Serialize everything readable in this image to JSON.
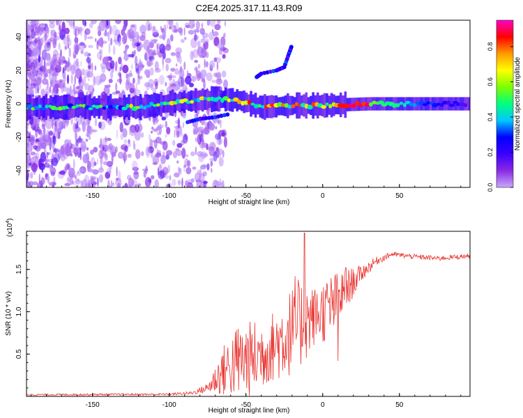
{
  "title": "C2E4.2025.317.11.43.R09",
  "colors": {
    "snr_line": "#e8322e",
    "frame": "#000000",
    "background": "#ffffff"
  },
  "colormap_stops": [
    "#c9a8ff",
    "#8a2be2",
    "#3a00ff",
    "#0000ff",
    "#00c8ff",
    "#00ff80",
    "#7cff00",
    "#ffff00",
    "#ff9a00",
    "#ff0000",
    "#ff00c8"
  ],
  "chart_data": [
    {
      "type": "heatmap",
      "xlabel": "Height of straight line (km)",
      "ylabel": "Frequency (Hz)",
      "xlim": [
        -193,
        96
      ],
      "ylim": [
        -50,
        50
      ],
      "xticks": [
        -150,
        -100,
        -50,
        0,
        50
      ],
      "yticks": [
        -40,
        -20,
        0,
        20,
        40
      ],
      "colorbar": {
        "label": "Normalized spectral amplitude",
        "range": [
          0,
          0.95
        ],
        "ticks": [
          "0.0",
          "0.2",
          "0.4",
          "0.6",
          "0.8"
        ],
        "tick_values": [
          0.0,
          0.2,
          0.4,
          0.6,
          0.8
        ]
      },
      "features": [
        {
          "name": "main_band",
          "x_start": -193,
          "x_end": 96,
          "center_hz": [
            [
              -193,
              -2
            ],
            [
              -120,
              -2
            ],
            [
              -95,
              1
            ],
            [
              -70,
              3
            ],
            [
              -55,
              2
            ],
            [
              -40,
              -2
            ],
            [
              -20,
              -1
            ],
            [
              0,
              -1
            ],
            [
              30,
              0
            ],
            [
              96,
              0
            ]
          ]
        },
        {
          "name": "upper_branch",
          "points": [
            [
              -43,
              16
            ],
            [
              -40,
              18
            ],
            [
              -30,
              20
            ],
            [
              -25,
              22
            ],
            [
              -22,
              30
            ],
            [
              -20,
              35
            ]
          ]
        },
        {
          "name": "lower_branch",
          "points": [
            [
              -88,
              -11
            ],
            [
              -80,
              -9
            ],
            [
              -70,
              -8
            ],
            [
              -60,
              -6
            ]
          ]
        }
      ]
    },
    {
      "type": "line",
      "xlabel": "Height of straight line (km)",
      "ylabel": "SNR (10 * v/v)",
      "y_multiplier": "(x10",
      "y_exponent": "4",
      "y_multiplier_close": ")",
      "xlim": [
        -193,
        96
      ],
      "ylim": [
        0,
        1.95
      ],
      "ylim_units_x10e4": true,
      "xticks": [
        -150,
        -100,
        -50,
        0,
        50
      ],
      "yticks": [
        0.5,
        1.0,
        1.5
      ],
      "yticklabels": [
        "0.5",
        "1.0",
        "1.5"
      ],
      "envelope": [
        {
          "x": -193,
          "base": 0.02,
          "amp": 0.01
        },
        {
          "x": -100,
          "base": 0.025,
          "amp": 0.012
        },
        {
          "x": -85,
          "base": 0.04,
          "amp": 0.02
        },
        {
          "x": -75,
          "base": 0.1,
          "amp": 0.06
        },
        {
          "x": -65,
          "base": 0.3,
          "amp": 0.3
        },
        {
          "x": -55,
          "base": 0.42,
          "amp": 0.45
        },
        {
          "x": -45,
          "base": 0.45,
          "amp": 0.45
        },
        {
          "x": -35,
          "base": 0.55,
          "amp": 0.4
        },
        {
          "x": -25,
          "base": 0.7,
          "amp": 0.5
        },
        {
          "x": -15,
          "base": 0.85,
          "amp": 0.55
        },
        {
          "x": -5,
          "base": 0.95,
          "amp": 0.35
        },
        {
          "x": 5,
          "base": 1.05,
          "amp": 0.4
        },
        {
          "x": 15,
          "base": 1.25,
          "amp": 0.25
        },
        {
          "x": 25,
          "base": 1.45,
          "amp": 0.1
        },
        {
          "x": 35,
          "base": 1.6,
          "amp": 0.05
        },
        {
          "x": 45,
          "base": 1.68,
          "amp": 0.03
        },
        {
          "x": 60,
          "base": 1.65,
          "amp": 0.03
        },
        {
          "x": 75,
          "base": 1.63,
          "amp": 0.03
        },
        {
          "x": 96,
          "base": 1.66,
          "amp": 0.03
        }
      ],
      "peaks": [
        {
          "x": -12,
          "y": 1.93
        },
        {
          "x": -18,
          "y": 1.42
        },
        {
          "x": 10,
          "y": 0.42
        },
        {
          "x": 15,
          "y": 1.52
        }
      ]
    }
  ]
}
